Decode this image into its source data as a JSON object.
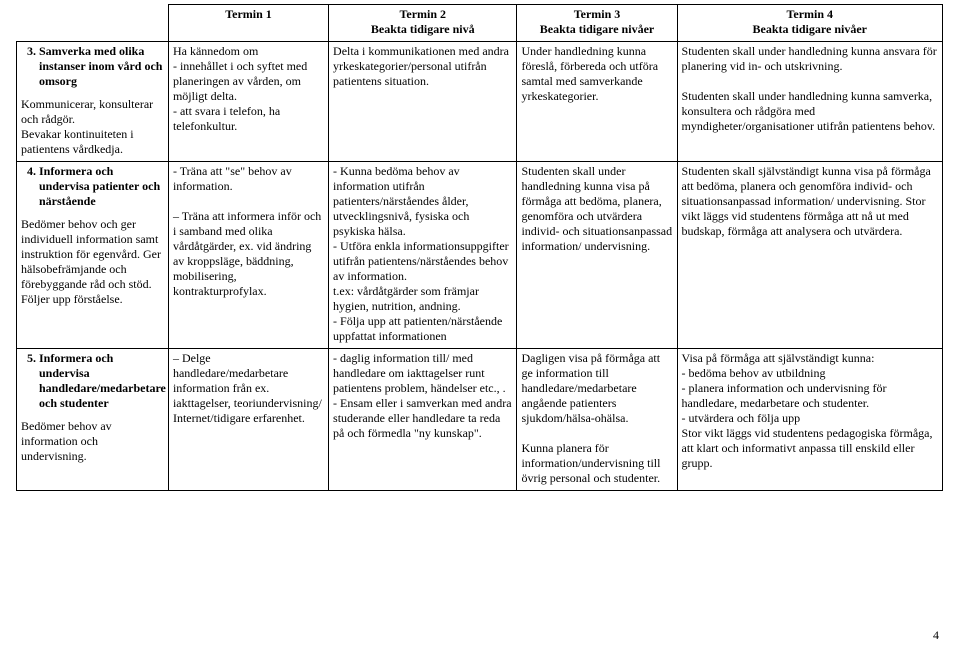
{
  "page_number": "4",
  "columns": {
    "c1": {
      "title": "Termin 1",
      "sub": ""
    },
    "c2": {
      "title": "Termin 2",
      "sub": "Beakta tidigare nivå"
    },
    "c3": {
      "title": "Termin 3",
      "sub": "Beakta tidigare nivåer"
    },
    "c4": {
      "title": "Termin 4",
      "sub": "Beakta tidigare nivåer"
    }
  },
  "rows": {
    "r3": {
      "number": "3.",
      "title": "Samverka med olika instanser inom vård och omsorg",
      "sub": "Kommunicerar, konsulterar och rådgör.\nBevakar kontinuiteten i patientens vårdkedja.",
      "t1": "Ha kännedom om\n- innehållet i och syftet med planeringen av vården, om möjligt delta.\n- att svara i telefon, ha telefonkultur.",
      "t2": "Delta i kommunikationen med andra yrkeskategorier/personal utifrån patientens situation.",
      "t3": "Under handledning kunna föreslå, förbereda och utföra samtal med samverkande yrkeskategorier.",
      "t4": "Studenten skall under handledning kunna ansvara för planering vid in- och utskrivning.\n\nStudenten skall under handledning kunna samverka, konsultera och rådgöra med myndigheter/organisationer utifrån patientens behov."
    },
    "r4": {
      "number": "4.",
      "title": "Informera och undervisa patienter och närstående",
      "sub": "Bedömer behov och ger individuell information samt instruktion för egenvård. Ger hälsobefrämjande och förebyggande råd och stöd. Följer upp förståelse.",
      "t1": "- Träna att \"se\" behov av information.\n\n– Träna att informera inför och i samband med olika vårdåtgärder, ex. vid ändring av kroppsläge, bäddning, mobilisering, kontrakturprofylax.",
      "t2": "- Kunna bedöma behov av information utifrån patienters/närståendes ålder, utvecklingsnivå, fysiska och psykiska hälsa.\n- Utföra enkla informationsuppgifter utifrån patientens/närståendes behov av information.\nt.ex: vårdåtgärder som främjar hygien, nutrition, andning.\n- Följa upp att patienten/närstående uppfattat informationen",
      "t3": "Studenten skall under handledning kunna visa på förmåga att bedöma, planera, genomföra och utvärdera individ- och situationsanpassad information/ undervisning.",
      "t4": "Studenten skall självständigt kunna visa på förmåga att bedöma, planera och genomföra individ- och situationsanpassad information/ undervisning. Stor vikt läggs vid studentens förmåga att nå ut med budskap, förmåga att analysera och utvärdera."
    },
    "r5": {
      "number": "5.",
      "title": "Informera och undervisa handledare/medarbetare och studenter",
      "sub": "Bedömer behov av information och undervisning.",
      "t1": "– Delge handledare/medarbetare information från ex. iakttagelser, teoriundervisning/\nInternet/tidigare erfarenhet.",
      "t2": "- daglig information till/ med handledare om iakttagelser runt patientens problem, händelser etc., .\n- Ensam eller i samverkan med andra studerande eller handledare ta reda på och förmedla \"ny kunskap\".",
      "t3": "Dagligen visa på förmåga att ge information till handledare/medarbetare angående patienters sjukdom/hälsa-ohälsa.\n\nKunna planera för information/undervisning till övrig personal och studenter.",
      "t4": "Visa på förmåga att självständigt kunna:\n- bedöma behov av utbildning\n- planera information och undervisning för handledare, medarbetare och studenter.\n- utvärdera och följa upp\nStor vikt läggs vid studentens pedagogiska förmåga, att klart och informativt anpassa till enskild eller grupp."
    }
  }
}
